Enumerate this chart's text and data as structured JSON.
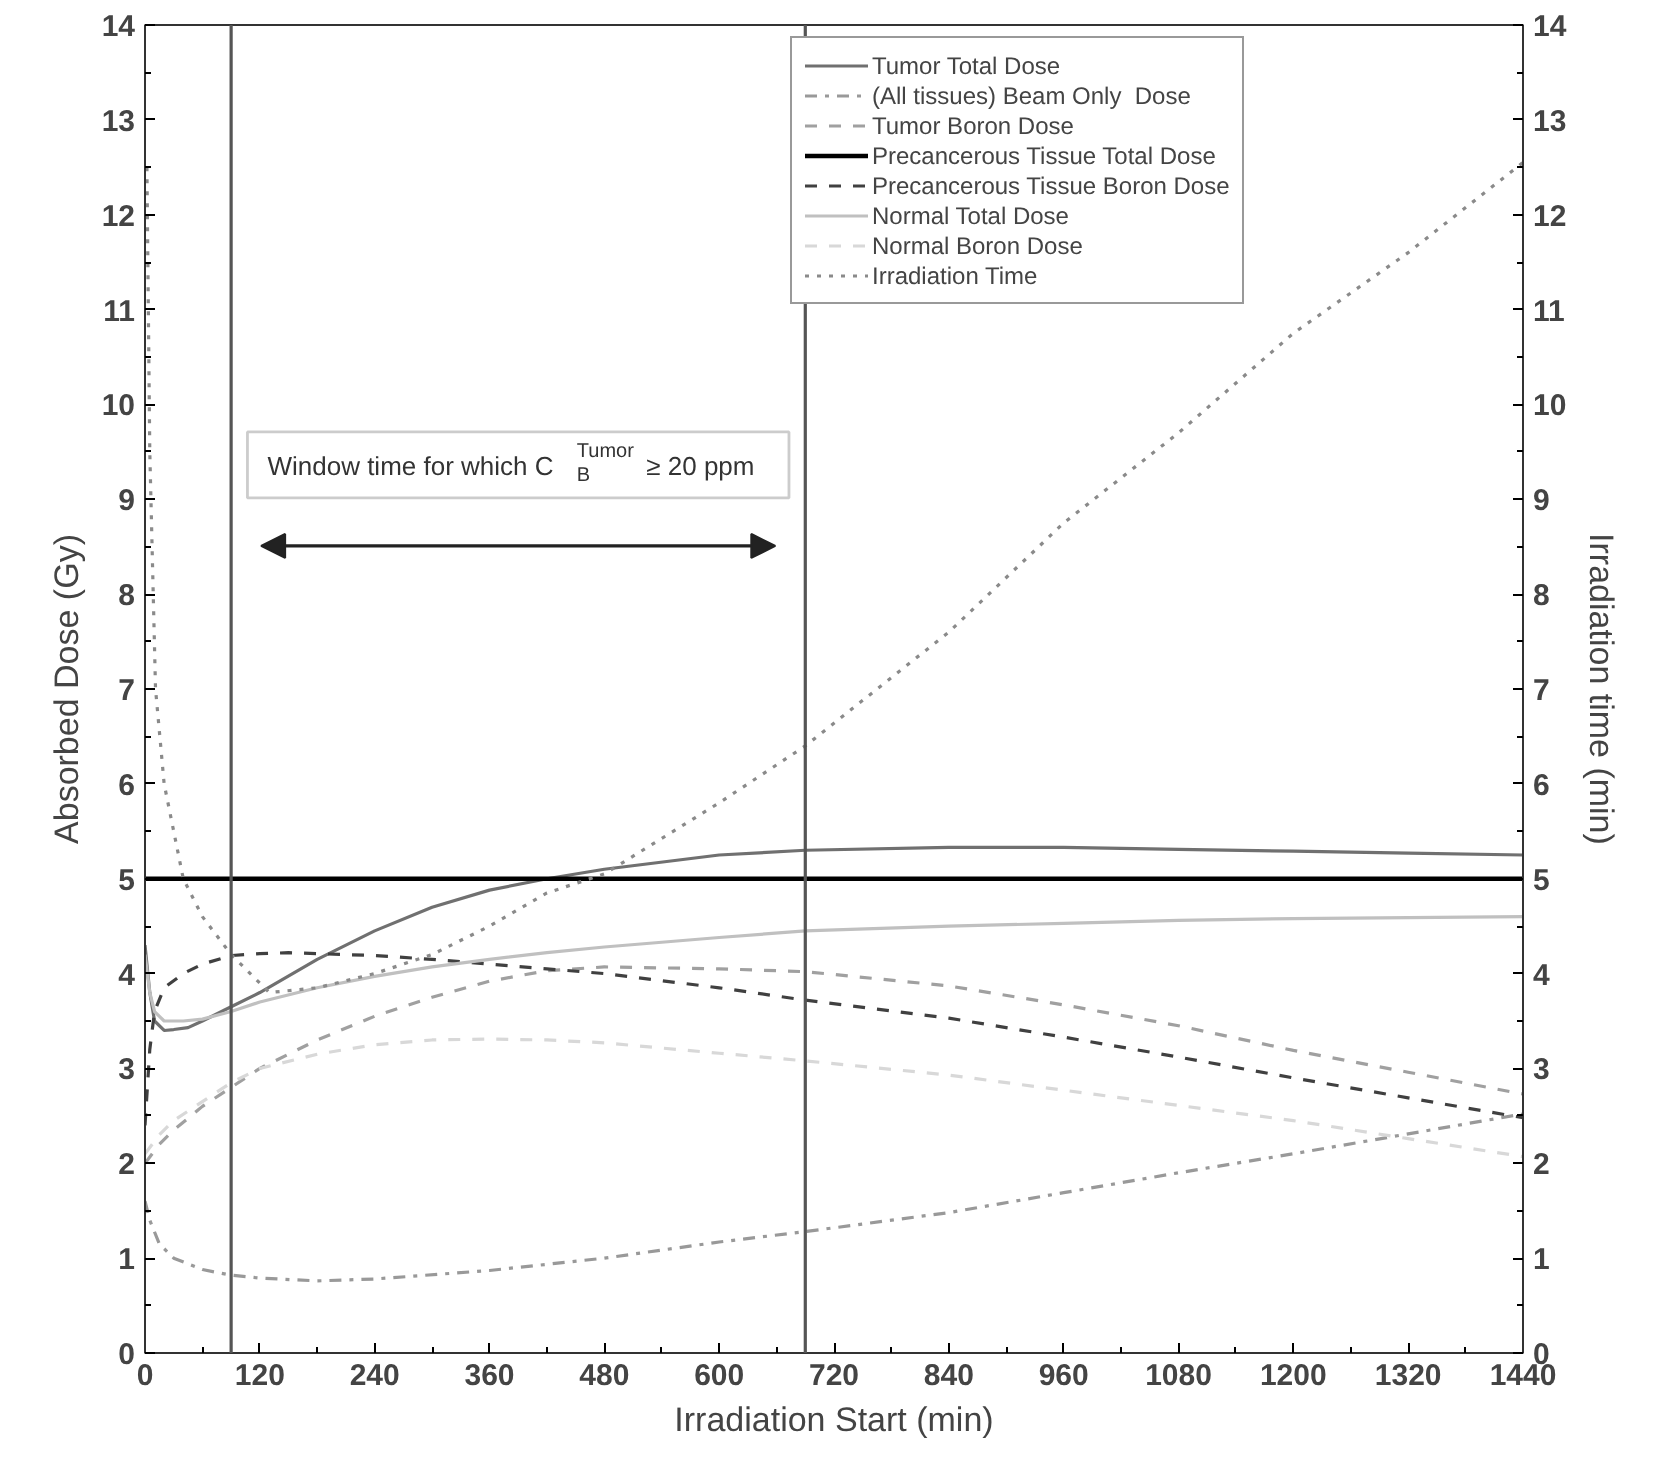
{
  "chart_data": {
    "type": "line",
    "xlabel": "Irradiation Start (min)",
    "ylabel": "Absorbed Dose (Gy)",
    "y2label": "Irradiation time (min)",
    "xlim": [
      0,
      1440
    ],
    "xticks": [
      0,
      120,
      240,
      360,
      480,
      600,
      720,
      840,
      960,
      1080,
      1200,
      1320,
      1440
    ],
    "ylim": [
      0,
      14
    ],
    "yticks": [
      0,
      1,
      2,
      3,
      4,
      5,
      6,
      7,
      8,
      9,
      10,
      11,
      12,
      13,
      14
    ],
    "y2lim": [
      0,
      14
    ],
    "y2ticks": [
      0,
      1,
      2,
      3,
      4,
      5,
      6,
      7,
      8,
      9,
      10,
      11,
      12,
      13,
      14
    ],
    "grid": false,
    "legend": "top right",
    "marker": "none",
    "series": [
      {
        "name": "Tumor Total Dose",
        "color": "#707070",
        "line_style": "solid",
        "x": [
          0,
          5,
          10,
          20,
          30,
          45,
          60,
          90,
          120,
          180,
          240,
          300,
          360,
          420,
          480,
          600,
          690,
          840,
          960,
          1080,
          1200,
          1320,
          1440
        ],
        "values": [
          4.3,
          3.8,
          3.5,
          3.4,
          3.41,
          3.43,
          3.5,
          3.65,
          3.8,
          4.15,
          4.45,
          4.7,
          4.88,
          5.0,
          5.1,
          5.25,
          5.3,
          5.33,
          5.33,
          5.31,
          5.29,
          5.27,
          5.25
        ]
      },
      {
        "name": "(All tissues) Beam Only  Dose",
        "color": "#999999",
        "line_style": "dashdot",
        "x": [
          0,
          5,
          15,
          30,
          60,
          90,
          120,
          180,
          240,
          360,
          480,
          600,
          690,
          840,
          960,
          1080,
          1200,
          1320,
          1440
        ],
        "values": [
          1.6,
          1.4,
          1.15,
          1.0,
          0.88,
          0.82,
          0.79,
          0.76,
          0.78,
          0.87,
          1.0,
          1.17,
          1.28,
          1.48,
          1.69,
          1.9,
          2.1,
          2.31,
          2.52
        ]
      },
      {
        "name": "Tumor Boron Dose",
        "color": "#a0a0a0",
        "line_style": "dashed",
        "x": [
          0,
          15,
          30,
          60,
          90,
          120,
          180,
          240,
          300,
          360,
          420,
          480,
          600,
          690,
          840,
          960,
          1080,
          1200,
          1320,
          1440
        ],
        "values": [
          2.0,
          2.2,
          2.35,
          2.6,
          2.8,
          3.0,
          3.3,
          3.55,
          3.75,
          3.92,
          4.03,
          4.07,
          4.05,
          4.02,
          3.87,
          3.67,
          3.45,
          3.19,
          2.96,
          2.73
        ]
      },
      {
        "name": "Precancerous Tissue Total Dose",
        "color": "#000000",
        "line_style": "solid",
        "x": [
          0,
          1440
        ],
        "values": [
          5,
          5
        ]
      },
      {
        "name": "Precancerous Tissue Boron Dose",
        "color": "#404040",
        "line_style": "dashed",
        "x": [
          0,
          5,
          10,
          20,
          40,
          60,
          90,
          120,
          150,
          180,
          240,
          300,
          360,
          420,
          480,
          600,
          690,
          840,
          960,
          1080,
          1200,
          1320,
          1440
        ],
        "values": [
          2.4,
          3.2,
          3.6,
          3.85,
          4.0,
          4.1,
          4.19,
          4.21,
          4.22,
          4.21,
          4.19,
          4.15,
          4.1,
          4.05,
          4.0,
          3.85,
          3.72,
          3.53,
          3.33,
          3.12,
          2.9,
          2.69,
          2.48
        ]
      },
      {
        "name": "Normal Total Dose",
        "color": "#c0c0c0",
        "line_style": "solid",
        "x": [
          0,
          5,
          10,
          20,
          40,
          60,
          90,
          120,
          180,
          240,
          300,
          360,
          420,
          480,
          600,
          690,
          840,
          960,
          1080,
          1200,
          1320,
          1440
        ],
        "values": [
          4.2,
          3.8,
          3.6,
          3.5,
          3.5,
          3.52,
          3.6,
          3.7,
          3.85,
          3.97,
          4.07,
          4.15,
          4.22,
          4.28,
          4.38,
          4.45,
          4.5,
          4.53,
          4.56,
          4.58,
          4.59,
          4.6
        ]
      },
      {
        "name": "Normal Boron Dose",
        "color": "#d8d8d8",
        "line_style": "dashed",
        "x": [
          0,
          15,
          30,
          60,
          90,
          120,
          180,
          240,
          300,
          360,
          420,
          480,
          600,
          690,
          840,
          960,
          1080,
          1200,
          1320,
          1440
        ],
        "values": [
          2.1,
          2.3,
          2.45,
          2.65,
          2.85,
          3.0,
          3.15,
          3.25,
          3.3,
          3.31,
          3.3,
          3.27,
          3.16,
          3.08,
          2.93,
          2.77,
          2.61,
          2.45,
          2.26,
          2.07
        ]
      },
      {
        "name": "Irradiation Time",
        "color": "#8a8a8a",
        "line_style": "dotted",
        "axis": "y2",
        "x": [
          2,
          5,
          11,
          20,
          40,
          60,
          90,
          130,
          180,
          240,
          300,
          360,
          420,
          480,
          600,
          690,
          840,
          960,
          1080,
          1200,
          1320,
          1440
        ],
        "values": [
          12.5,
          9.5,
          7.0,
          6.0,
          5.0,
          4.6,
          4.2,
          3.8,
          3.85,
          4.0,
          4.2,
          4.5,
          4.85,
          5.05,
          5.8,
          6.4,
          7.6,
          8.75,
          9.7,
          10.75,
          11.6,
          12.55
        ]
      }
    ],
    "ref_lines": [
      {
        "axis": "x",
        "value": 90,
        "color": "#555555"
      },
      {
        "axis": "x",
        "value": 690,
        "color": "#555555"
      }
    ],
    "annotations": [
      "Window time for which C$^{Tumor}$$_{B}$ ≥ 20 ppm"
    ]
  }
}
